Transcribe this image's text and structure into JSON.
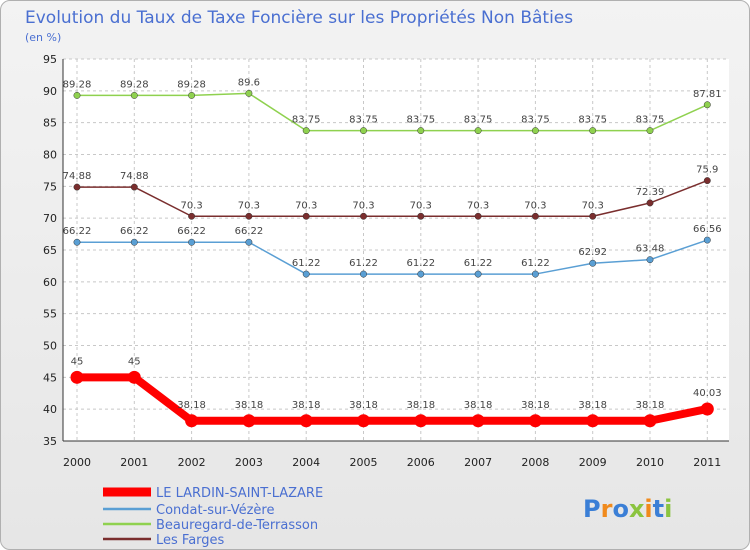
{
  "chart_data": {
    "type": "line",
    "title": "Evolution du Taux de Taxe Foncière sur les Propriétés Non Bâties",
    "subtitle": "(en %)",
    "xlabel": "",
    "ylabel": "",
    "ylim": [
      35,
      95
    ],
    "yticks": [
      35,
      40,
      45,
      50,
      55,
      60,
      65,
      70,
      75,
      80,
      85,
      90,
      95
    ],
    "categories": [
      "2000",
      "2001",
      "2002",
      "2003",
      "2004",
      "2005",
      "2006",
      "2007",
      "2008",
      "2009",
      "2010",
      "2011"
    ],
    "grid": true,
    "legend_position": "bottom-left",
    "series": [
      {
        "name": "LE LARDIN-SAINT-LAZARE",
        "color": "#ff0000",
        "values": [
          45,
          45,
          38.18,
          38.18,
          38.18,
          38.18,
          38.18,
          38.18,
          38.18,
          38.18,
          38.18,
          40.03
        ],
        "labels": [
          "45",
          "45",
          "38.18",
          "38.18",
          "38.18",
          "38.18",
          "38.18",
          "38.18",
          "38.18",
          "38.18",
          "38.18",
          "40.03"
        ]
      },
      {
        "name": "Condat-sur-Vézère",
        "color": "#5a9fd4",
        "values": [
          66.22,
          66.22,
          66.22,
          66.22,
          61.22,
          61.22,
          61.22,
          61.22,
          61.22,
          62.92,
          63.48,
          66.56
        ],
        "labels": [
          "66.22",
          "66.22",
          "66.22",
          "66.22",
          "61.22",
          "61.22",
          "61.22",
          "61.22",
          "61.22",
          "62.92",
          "63.48",
          "66.56"
        ]
      },
      {
        "name": "Beauregard-de-Terrasson",
        "color": "#8fd14f",
        "values": [
          89.28,
          89.28,
          89.28,
          89.6,
          83.75,
          83.75,
          83.75,
          83.75,
          83.75,
          83.75,
          83.75,
          87.81
        ],
        "labels": [
          "89.28",
          "89.28",
          "89.28",
          "89.6",
          "83.75",
          "83.75",
          "83.75",
          "83.75",
          "83.75",
          "83.75",
          "83.75",
          "87.81"
        ]
      },
      {
        "name": "Les Farges",
        "color": "#7a2e2e",
        "values": [
          74.88,
          74.88,
          70.3,
          70.3,
          70.3,
          70.3,
          70.3,
          70.3,
          70.3,
          70.3,
          72.39,
          75.9
        ],
        "labels": [
          "74.88",
          "74.88",
          "70.3",
          "70.3",
          "70.3",
          "70.3",
          "70.3",
          "70.3",
          "70.3",
          "70.3",
          "72.39",
          "75.9"
        ]
      }
    ]
  },
  "logo": {
    "text": "Proxiti"
  }
}
